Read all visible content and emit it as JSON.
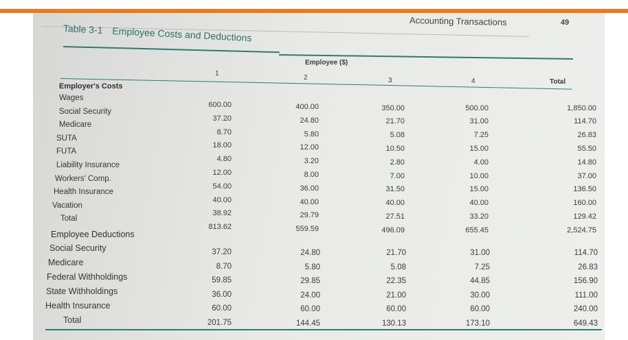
{
  "page": {
    "running_head": "Accounting Transactions",
    "page_number": "49",
    "table_number": "Table 3-1",
    "table_title": "Employee Costs and Deductions"
  },
  "table": {
    "group_header": "Employee ($)",
    "columns": [
      "1",
      "2",
      "3",
      "4",
      "Total"
    ],
    "sections": [
      {
        "label": "Employer's Costs",
        "rows": [
          {
            "label": "Wages",
            "values": [
              "600.00",
              "400.00",
              "350.00",
              "500.00",
              "1,850.00"
            ]
          },
          {
            "label": "Social Security",
            "values": [
              "37.20",
              "24.80",
              "21.70",
              "31.00",
              "114.70"
            ]
          },
          {
            "label": "Medicare",
            "values": [
              "8.70",
              "5.80",
              "5.08",
              "7.25",
              "26.83"
            ]
          },
          {
            "label": "SUTA",
            "values": [
              "18.00",
              "12.00",
              "10.50",
              "15.00",
              "55.50"
            ]
          },
          {
            "label": "FUTA",
            "values": [
              "4.80",
              "3.20",
              "2.80",
              "4.00",
              "14.80"
            ]
          },
          {
            "label": "Liability Insurance",
            "values": [
              "12.00",
              "8.00",
              "7.00",
              "10.00",
              "37.00"
            ]
          },
          {
            "label": "Workers' Comp.",
            "values": [
              "54.00",
              "36.00",
              "31.50",
              "15.00",
              "136.50"
            ]
          },
          {
            "label": "Health Insurance",
            "values": [
              "40.00",
              "40.00",
              "40.00",
              "40.00",
              "160.00"
            ]
          },
          {
            "label": "Vacation",
            "values": [
              "38.92",
              "29.79",
              "27.51",
              "33.20",
              "129.42"
            ]
          },
          {
            "label": "Total",
            "values": [
              "813.62",
              "559.59",
              "496.09",
              "655.45",
              "2,524.75"
            ]
          }
        ]
      },
      {
        "label": "Employee Deductions",
        "rows": [
          {
            "label": "Social Security",
            "values": [
              "37.20",
              "24.80",
              "21.70",
              "31.00",
              "114.70"
            ]
          },
          {
            "label": "Medicare",
            "values": [
              "8.70",
              "5.80",
              "5.08",
              "7.25",
              "26.83"
            ]
          },
          {
            "label": "Federal Withholdings",
            "values": [
              "59.85",
              "29.85",
              "22.35",
              "44.85",
              "156.90"
            ]
          },
          {
            "label": "State Withholdings",
            "values": [
              "36.00",
              "24.00",
              "21.00",
              "30.00",
              "111.00"
            ]
          },
          {
            "label": "Health Insurance",
            "values": [
              "60.00",
              "60.00",
              "60.00",
              "60.00",
              "240.00"
            ]
          },
          {
            "label": "Total",
            "values": [
              "201.75",
              "144.45",
              "130.13",
              "173.10",
              "649.43"
            ]
          }
        ]
      }
    ]
  },
  "colors": {
    "accent_orange": "#ee7a1c",
    "rule_teal": "#2e7a6e",
    "title_teal": "#2c6f68"
  }
}
